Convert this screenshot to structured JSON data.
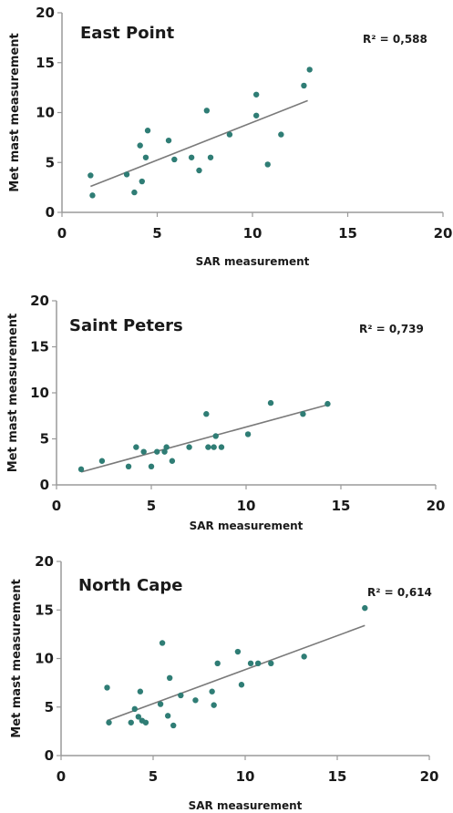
{
  "chart_data": [
    {
      "type": "scatter",
      "title": "East Point",
      "annotation": "R² = 0,588",
      "xlabel": "SAR measurement",
      "ylabel": "Met mast measurement",
      "xlim": [
        0,
        20
      ],
      "ylim": [
        0,
        20
      ],
      "xticks": [
        "0",
        "5",
        "10",
        "15",
        "20"
      ],
      "yticks": [
        "0",
        "5",
        "10",
        "15",
        "20"
      ],
      "grid": false,
      "points": [
        [
          1.5,
          3.7
        ],
        [
          1.6,
          1.7
        ],
        [
          3.4,
          3.8
        ],
        [
          3.8,
          2.0
        ],
        [
          4.1,
          6.7
        ],
        [
          4.2,
          3.1
        ],
        [
          4.4,
          5.5
        ],
        [
          4.5,
          8.2
        ],
        [
          5.6,
          7.2
        ],
        [
          5.9,
          5.3
        ],
        [
          6.8,
          5.5
        ],
        [
          7.2,
          4.2
        ],
        [
          7.6,
          10.2
        ],
        [
          7.8,
          5.5
        ],
        [
          8.8,
          7.8
        ],
        [
          10.2,
          11.8
        ],
        [
          10.2,
          9.7
        ],
        [
          10.8,
          4.8
        ],
        [
          11.5,
          7.8
        ],
        [
          12.7,
          12.7
        ],
        [
          13.0,
          14.3
        ]
      ],
      "trendline": [
        [
          1.5,
          2.6
        ],
        [
          12.9,
          11.2
        ]
      ]
    },
    {
      "type": "scatter",
      "title": "Saint Peters",
      "annotation": "R² = 0,739",
      "xlabel": "SAR measurement",
      "ylabel": "Met mast measurement",
      "xlim": [
        0,
        20
      ],
      "ylim": [
        0,
        20
      ],
      "xticks": [
        "0",
        "5",
        "10",
        "15",
        "20"
      ],
      "yticks": [
        "0",
        "5",
        "10",
        "15",
        "20"
      ],
      "grid": false,
      "points": [
        [
          1.3,
          1.7
        ],
        [
          2.4,
          2.6
        ],
        [
          3.8,
          2.0
        ],
        [
          4.2,
          4.1
        ],
        [
          4.6,
          3.6
        ],
        [
          5.0,
          2.0
        ],
        [
          5.3,
          3.6
        ],
        [
          5.7,
          3.6
        ],
        [
          5.8,
          4.1
        ],
        [
          6.1,
          2.6
        ],
        [
          7.0,
          4.1
        ],
        [
          7.9,
          7.7
        ],
        [
          8.0,
          4.1
        ],
        [
          8.3,
          4.1
        ],
        [
          8.4,
          5.3
        ],
        [
          8.7,
          4.1
        ],
        [
          10.1,
          5.5
        ],
        [
          11.3,
          8.9
        ],
        [
          13.0,
          7.7
        ],
        [
          14.3,
          8.8
        ]
      ],
      "trendline": [
        [
          1.3,
          1.4
        ],
        [
          14.3,
          8.7
        ]
      ]
    },
    {
      "type": "scatter",
      "title": "North Cape",
      "annotation": "R² = 0,614",
      "xlabel": "SAR measurement",
      "ylabel": "Met mast measurement",
      "xlim": [
        0,
        20
      ],
      "ylim": [
        0,
        20
      ],
      "xticks": [
        "0",
        "5",
        "10",
        "15",
        "20"
      ],
      "yticks": [
        "0",
        "5",
        "10",
        "15",
        "20"
      ],
      "grid": false,
      "points": [
        [
          2.5,
          7.0
        ],
        [
          2.6,
          3.4
        ],
        [
          3.8,
          3.4
        ],
        [
          4.0,
          4.8
        ],
        [
          4.2,
          4.0
        ],
        [
          4.3,
          6.6
        ],
        [
          4.4,
          3.6
        ],
        [
          4.6,
          3.4
        ],
        [
          5.4,
          5.3
        ],
        [
          5.5,
          11.6
        ],
        [
          5.8,
          4.1
        ],
        [
          5.9,
          8.0
        ],
        [
          6.1,
          3.1
        ],
        [
          6.5,
          6.2
        ],
        [
          7.3,
          5.7
        ],
        [
          8.2,
          6.6
        ],
        [
          8.3,
          5.2
        ],
        [
          8.5,
          9.5
        ],
        [
          9.6,
          10.7
        ],
        [
          9.8,
          7.3
        ],
        [
          10.3,
          9.5
        ],
        [
          10.7,
          9.5
        ],
        [
          11.4,
          9.5
        ],
        [
          13.2,
          10.2
        ],
        [
          16.5,
          15.2
        ]
      ],
      "trendline": [
        [
          2.5,
          3.6
        ],
        [
          16.5,
          13.4
        ]
      ]
    }
  ]
}
